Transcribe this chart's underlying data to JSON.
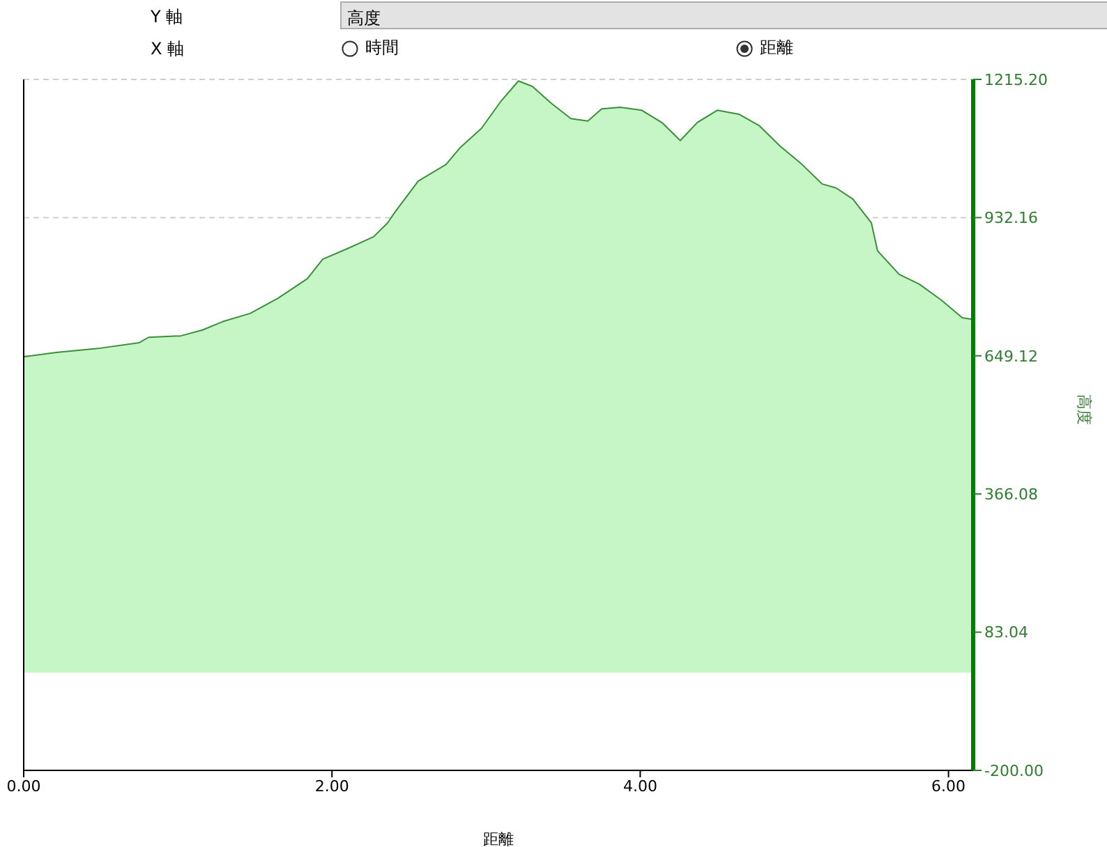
{
  "chart_data": {
    "type": "area",
    "xlabel": "距離",
    "ylabel": "高度",
    "annotations": [
      "Y 軸",
      "高度",
      "X 軸",
      "時間",
      "距離"
    ],
    "xlim": [
      0,
      6.16
    ],
    "xticks": [
      {
        "value": 0,
        "label": "0.00"
      },
      {
        "value": 2,
        "label": "2.00"
      },
      {
        "value": 4,
        "label": "4.00"
      },
      {
        "value": 6,
        "label": "6.00"
      }
    ],
    "ylim": [
      -200,
      1215.2
    ],
    "yticks": [
      {
        "value": -200,
        "label": "-200.00"
      },
      83.04,
      366.08,
      649.12,
      932.16,
      {
        "value": 1215.2,
        "label": "1215.20"
      }
    ],
    "grid": "y",
    "legend": false,
    "marker": "none",
    "x": [
      0,
      0.21,
      0.48,
      0.75,
      0.81,
      1.02,
      1.16,
      1.29,
      1.47,
      1.65,
      1.84,
      1.94,
      2.11,
      2.27,
      2.36,
      2.41,
      2.56,
      2.74,
      2.83,
      2.97,
      3.1,
      3.21,
      3.3,
      3.42,
      3.55,
      3.66,
      3.75,
      3.87,
      4.01,
      4.14,
      4.26,
      4.37,
      4.5,
      4.64,
      4.77,
      4.91,
      5.05,
      5.18,
      5.27,
      5.38,
      5.5,
      5.54,
      5.68,
      5.81,
      5.95,
      6.09,
      6.15
    ],
    "series": [
      {
        "color": "#c6f5c6",
        "values": [
          647,
          656,
          664,
          676,
          687,
          690,
          702,
          719,
          736,
          767,
          807,
          847,
          870,
          893,
          921,
          944,
          1007,
          1041,
          1075,
          1115,
          1172,
          1212,
          1201,
          1167,
          1135,
          1130,
          1155,
          1158,
          1152,
          1127,
          1090,
          1127,
          1152,
          1144,
          1121,
          1078,
          1041,
          1001,
          993,
          970,
          921,
          864,
          816,
          796,
          764,
          727,
          724
        ]
      }
    ]
  }
}
